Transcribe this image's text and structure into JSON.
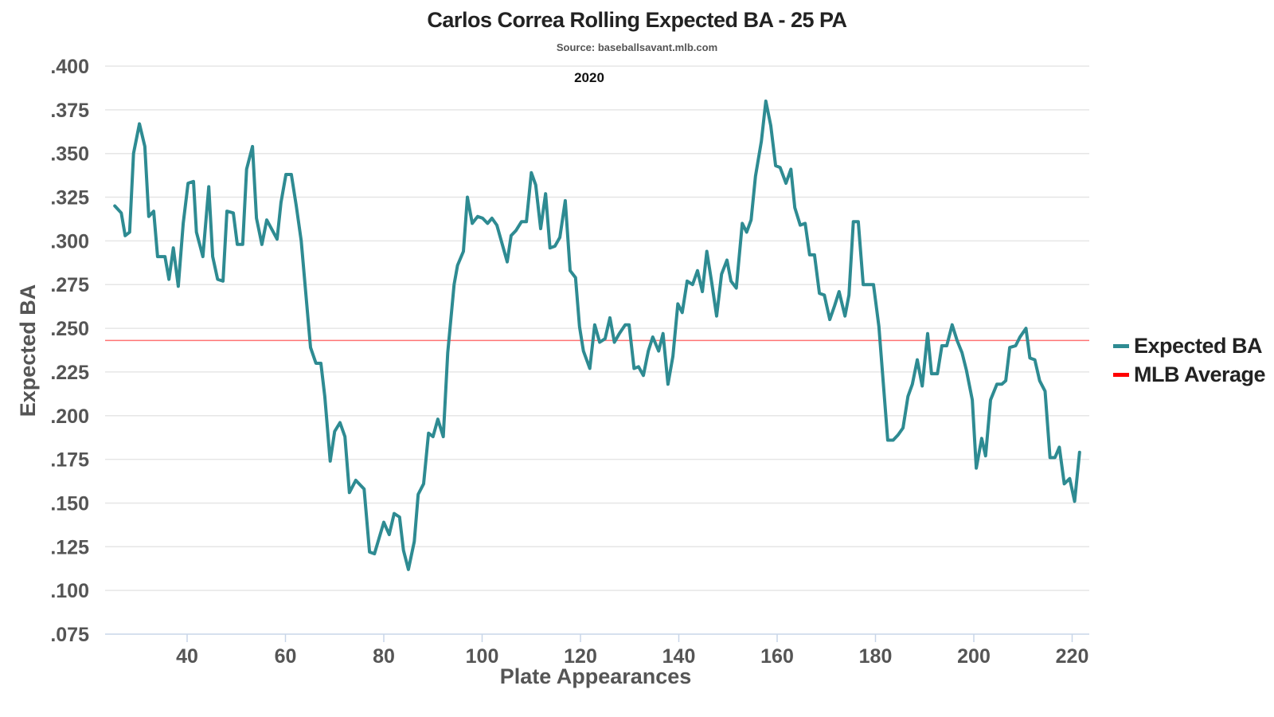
{
  "chart_data": {
    "type": "line",
    "title": "Carlos Correa Rolling Expected BA - 25 PA",
    "subtitle": "Source: baseballsavant.mlb.com",
    "annotation": "2020",
    "xlabel": "Plate Appearances",
    "ylabel": "Expected BA",
    "xlim": [
      23,
      224
    ],
    "ylim": [
      0.075,
      0.4
    ],
    "xticks": [
      40,
      60,
      80,
      100,
      120,
      140,
      160,
      180,
      200,
      220
    ],
    "xtick_labels": [
      "40",
      "60",
      "80",
      "100",
      "120",
      "140",
      "160",
      "180",
      "200",
      "220"
    ],
    "yticks": [
      0.4,
      0.375,
      0.35,
      0.325,
      0.3,
      0.275,
      0.25,
      0.225,
      0.2,
      0.175,
      0.15,
      0.125,
      0.1,
      0.075
    ],
    "ytick_labels": [
      ".400",
      ".375",
      ".350",
      ".325",
      ".300",
      ".275",
      ".250",
      ".225",
      ".200",
      ".175",
      ".150",
      ".125",
      ".100",
      ".075"
    ],
    "grid": true,
    "legend_position": "right",
    "series": [
      {
        "name": "Expected BA",
        "color": "#2e8b92",
        "x": [
          25.3,
          26.6,
          27.4,
          28.3,
          29.1,
          30.3,
          31.4,
          32.2,
          33.2,
          34.0,
          35.5,
          36.3,
          37.2,
          38.2,
          39.2,
          40.2,
          41.3,
          41.9,
          43.2,
          44.4,
          45.2,
          46.2,
          47.3,
          48.1,
          49.4,
          50.2,
          51.3,
          52.1,
          53.3,
          54.1,
          55.2,
          56.2,
          58.3,
          59.1,
          60.1,
          61.2,
          62.2,
          63.2,
          65.1,
          66.2,
          67.2,
          68.0,
          69.1,
          70.0,
          71.1,
          72.1,
          73.0,
          74.3,
          76.0,
          77.1,
          78.1,
          80.0,
          81.1,
          82.1,
          83.2,
          84.0,
          85.0,
          86.2,
          87.0,
          88.1,
          89.1,
          90.0,
          91.0,
          92.1,
          93.0,
          94.3,
          95.0,
          96.2,
          97.0,
          98.0,
          99.1,
          100.1,
          101.1,
          102.0,
          103.0,
          105.1,
          105.9,
          106.9,
          108.0,
          109.0,
          110.0,
          110.9,
          111.9,
          112.9,
          113.8,
          114.8,
          115.8,
          116.9,
          117.9,
          119.0,
          119.8,
          120.6,
          121.9,
          122.9,
          123.9,
          125.0,
          126.0,
          126.9,
          127.9,
          129.1,
          129.9,
          130.9,
          131.8,
          132.8,
          133.8,
          134.7,
          135.9,
          136.8,
          137.8,
          138.8,
          139.8,
          140.7,
          141.7,
          142.8,
          143.8,
          144.8,
          145.7,
          146.7,
          147.7,
          148.7,
          149.8,
          150.6,
          151.7,
          152.9,
          153.8,
          154.7,
          155.6,
          156.8,
          157.7,
          158.7,
          159.7,
          160.6,
          161.8,
          162.8,
          163.6,
          164.7,
          165.7,
          166.6,
          167.6,
          168.6,
          169.6,
          170.7,
          171.7,
          172.6,
          173.8,
          174.6,
          175.5,
          176.5,
          177.5,
          179.6,
          180.7,
          182.5,
          183.6,
          184.6,
          185.6,
          186.6,
          187.5,
          188.5,
          189.5,
          190.6,
          191.4,
          192.6,
          193.5,
          194.5,
          195.6,
          196.6,
          197.6,
          198.5,
          199.7,
          200.5,
          201.6,
          202.4,
          203.4,
          204.7,
          205.7,
          206.5,
          207.3,
          208.5,
          209.4,
          210.6,
          211.4,
          212.4,
          213.4,
          214.5,
          215.5,
          216.5,
          217.4,
          218.4,
          219.5,
          220.5,
          221.5
        ],
        "values": [
          0.32,
          0.316,
          0.303,
          0.305,
          0.35,
          0.367,
          0.354,
          0.314,
          0.317,
          0.291,
          0.291,
          0.278,
          0.296,
          0.274,
          0.31,
          0.333,
          0.334,
          0.305,
          0.291,
          0.331,
          0.291,
          0.278,
          0.277,
          0.317,
          0.316,
          0.298,
          0.298,
          0.341,
          0.354,
          0.313,
          0.298,
          0.312,
          0.301,
          0.322,
          0.338,
          0.338,
          0.32,
          0.3,
          0.239,
          0.23,
          0.23,
          0.211,
          0.174,
          0.191,
          0.196,
          0.188,
          0.156,
          0.163,
          0.158,
          0.122,
          0.121,
          0.139,
          0.132,
          0.144,
          0.142,
          0.123,
          0.112,
          0.128,
          0.155,
          0.161,
          0.19,
          0.188,
          0.198,
          0.188,
          0.236,
          0.275,
          0.286,
          0.294,
          0.325,
          0.31,
          0.314,
          0.313,
          0.31,
          0.313,
          0.309,
          0.288,
          0.303,
          0.306,
          0.311,
          0.311,
          0.339,
          0.332,
          0.307,
          0.327,
          0.296,
          0.297,
          0.302,
          0.323,
          0.283,
          0.279,
          0.251,
          0.237,
          0.227,
          0.252,
          0.242,
          0.244,
          0.256,
          0.242,
          0.247,
          0.252,
          0.252,
          0.227,
          0.228,
          0.223,
          0.237,
          0.245,
          0.237,
          0.247,
          0.218,
          0.234,
          0.264,
          0.259,
          0.277,
          0.275,
          0.283,
          0.271,
          0.294,
          0.276,
          0.257,
          0.281,
          0.289,
          0.277,
          0.273,
          0.31,
          0.305,
          0.312,
          0.337,
          0.357,
          0.38,
          0.366,
          0.343,
          0.342,
          0.333,
          0.341,
          0.319,
          0.309,
          0.31,
          0.292,
          0.292,
          0.27,
          0.269,
          0.255,
          0.263,
          0.271,
          0.257,
          0.269,
          0.311,
          0.311,
          0.275,
          0.275,
          0.251,
          0.186,
          0.186,
          0.189,
          0.193,
          0.211,
          0.218,
          0.232,
          0.217,
          0.247,
          0.224,
          0.224,
          0.24,
          0.24,
          0.252,
          0.243,
          0.236,
          0.226,
          0.209,
          0.17,
          0.187,
          0.177,
          0.209,
          0.218,
          0.218,
          0.22,
          0.239,
          0.24,
          0.245,
          0.25,
          0.233,
          0.232,
          0.22,
          0.214,
          0.176,
          0.176,
          0.182,
          0.161,
          0.164,
          0.151,
          0.179
        ]
      },
      {
        "name": "MLB Average",
        "color": "#ff0000",
        "value": 0.243
      }
    ]
  }
}
